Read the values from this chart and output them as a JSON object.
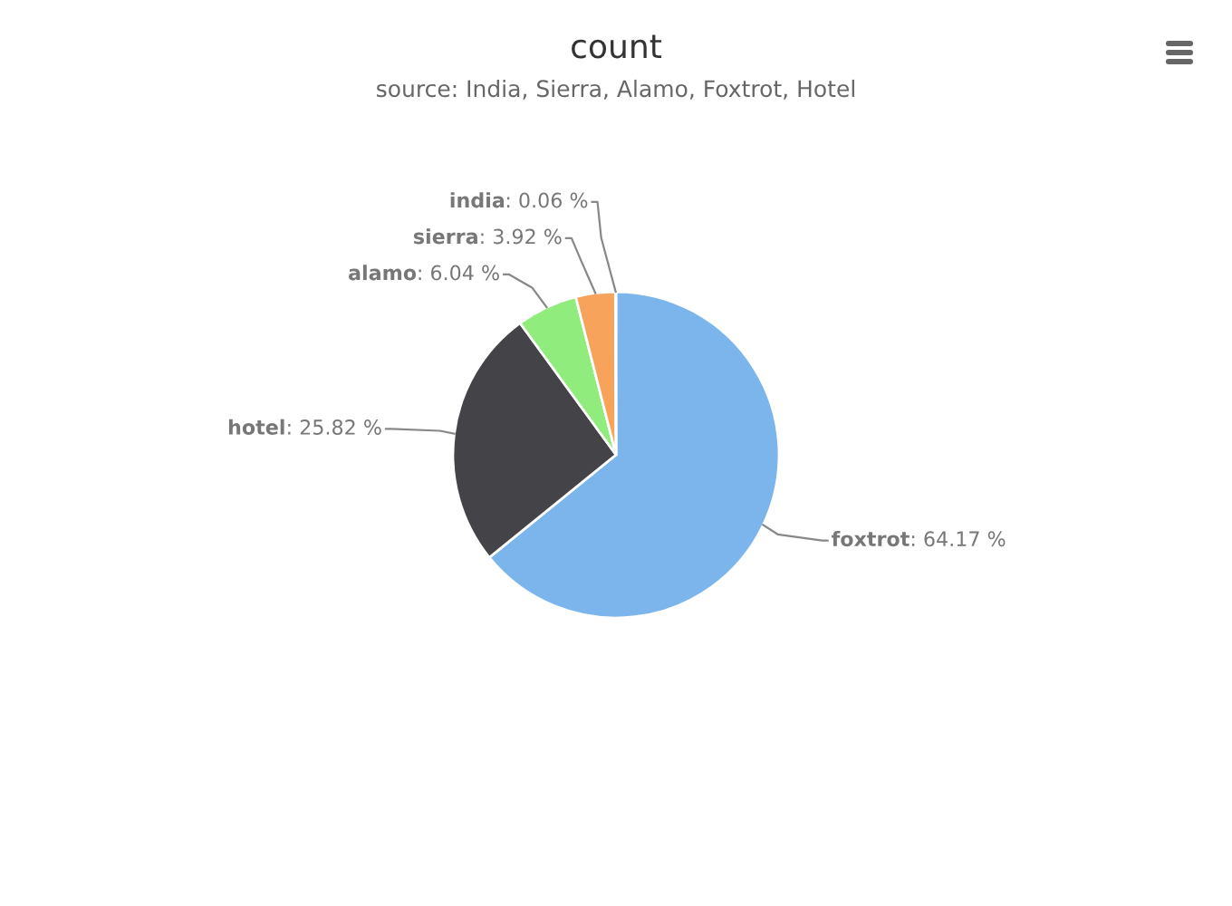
{
  "chart_data": {
    "type": "pie",
    "title": "count",
    "subtitle": "source: India, Sierra, Alamo, Foxtrot, Hotel",
    "categories": [
      "foxtrot",
      "hotel",
      "alamo",
      "sierra",
      "india"
    ],
    "values": [
      64.17,
      25.82,
      6.04,
      3.92,
      0.06
    ],
    "value_labels": [
      ": 64.17 %",
      ": 25.82 %",
      ": 6.04 %",
      ": 3.92 %",
      ": 0.06 %"
    ],
    "colors": [
      "#7cb5ec",
      "#434348",
      "#90ed7d",
      "#f7a35c",
      "#8085e9"
    ],
    "legend": false
  }
}
